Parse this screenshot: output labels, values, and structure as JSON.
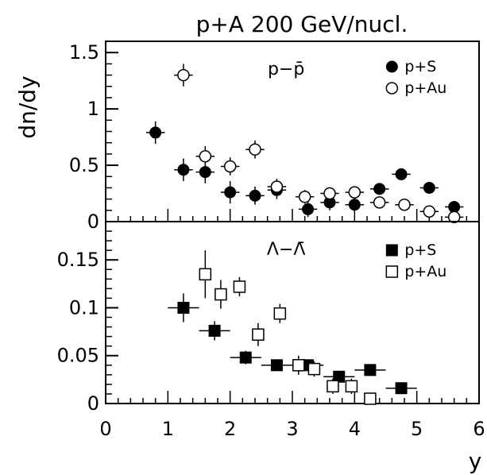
{
  "title": "p+A  200 GeV/nucl.",
  "x_axis": {
    "label": "y",
    "range": [
      0,
      6
    ],
    "ticks": [
      "0",
      "1",
      "2",
      "3",
      "4",
      "5",
      "6"
    ]
  },
  "chart_data": [
    {
      "type": "scatter",
      "panel": "top",
      "annotation": "p−p̄",
      "ylabel": "dn/dy",
      "ylim": [
        0,
        1.6
      ],
      "yticks": [
        "0",
        "0.5",
        "1",
        "1.5"
      ],
      "legend": "top-right",
      "series": [
        {
          "name": "p+S",
          "marker": "filled-circle",
          "points": [
            {
              "x": 0.8,
              "y": 0.79,
              "xerr": 0.15,
              "yerr": 0.1
            },
            {
              "x": 1.25,
              "y": 0.46,
              "xerr": 0.15,
              "yerr": 0.1
            },
            {
              "x": 1.6,
              "y": 0.44,
              "xerr": 0.15,
              "yerr": 0.1
            },
            {
              "x": 2.0,
              "y": 0.26,
              "xerr": 0.15,
              "yerr": 0.1
            },
            {
              "x": 2.4,
              "y": 0.23,
              "xerr": 0.15,
              "yerr": 0.08
            },
            {
              "x": 2.75,
              "y": 0.28,
              "xerr": 0.15,
              "yerr": 0.08
            },
            {
              "x": 3.25,
              "y": 0.11,
              "xerr": 0.15,
              "yerr": 0.07
            },
            {
              "x": 3.6,
              "y": 0.17,
              "xerr": 0.15,
              "yerr": 0.07
            },
            {
              "x": 4.0,
              "y": 0.15,
              "xerr": 0.15,
              "yerr": 0.06
            },
            {
              "x": 4.4,
              "y": 0.29,
              "xerr": 0.15,
              "yerr": 0.05
            },
            {
              "x": 4.75,
              "y": 0.42,
              "xerr": 0.15,
              "yerr": 0.05
            },
            {
              "x": 5.2,
              "y": 0.3,
              "xerr": 0.15,
              "yerr": 0.04
            },
            {
              "x": 5.6,
              "y": 0.13,
              "xerr": 0.15,
              "yerr": 0.05
            }
          ]
        },
        {
          "name": "p+Au",
          "marker": "open-circle",
          "points": [
            {
              "x": 1.25,
              "y": 1.3,
              "xerr": 0.15,
              "yerr": 0.1
            },
            {
              "x": 1.6,
              "y": 0.58,
              "xerr": 0.15,
              "yerr": 0.09
            },
            {
              "x": 2.0,
              "y": 0.49,
              "xerr": 0.15,
              "yerr": 0.08
            },
            {
              "x": 2.4,
              "y": 0.64,
              "xerr": 0.15,
              "yerr": 0.08
            },
            {
              "x": 2.75,
              "y": 0.31,
              "xerr": 0.15,
              "yerr": 0.07
            },
            {
              "x": 3.2,
              "y": 0.22,
              "xerr": 0.15,
              "yerr": 0.06
            },
            {
              "x": 3.6,
              "y": 0.25,
              "xerr": 0.15,
              "yerr": 0.05
            },
            {
              "x": 4.0,
              "y": 0.26,
              "xerr": 0.15,
              "yerr": 0.05
            },
            {
              "x": 4.4,
              "y": 0.17,
              "xerr": 0.15,
              "yerr": 0.04
            },
            {
              "x": 4.8,
              "y": 0.15,
              "xerr": 0.15,
              "yerr": 0.04
            },
            {
              "x": 5.2,
              "y": 0.09,
              "xerr": 0.15,
              "yerr": 0.03
            },
            {
              "x": 5.6,
              "y": 0.04,
              "xerr": 0.15,
              "yerr": 0.03
            }
          ]
        }
      ]
    },
    {
      "type": "scatter",
      "panel": "bottom",
      "annotation": "Λ−Λ̄",
      "ylabel": "",
      "ylim": [
        0,
        0.19
      ],
      "yticks": [
        "0",
        "0.05",
        "0.1",
        "0.15"
      ],
      "legend": "top-right",
      "series": [
        {
          "name": "p+S",
          "marker": "filled-square",
          "points": [
            {
              "x": 1.25,
              "y": 0.1,
              "xerr": 0.25,
              "yerr": 0.015
            },
            {
              "x": 1.75,
              "y": 0.076,
              "xerr": 0.25,
              "yerr": 0.01
            },
            {
              "x": 2.25,
              "y": 0.048,
              "xerr": 0.25,
              "yerr": 0.007
            },
            {
              "x": 2.75,
              "y": 0.04,
              "xerr": 0.25,
              "yerr": 0.006
            },
            {
              "x": 3.25,
              "y": 0.04,
              "xerr": 0.25,
              "yerr": 0.006
            },
            {
              "x": 3.75,
              "y": 0.028,
              "xerr": 0.25,
              "yerr": 0.006
            },
            {
              "x": 4.25,
              "y": 0.035,
              "xerr": 0.25,
              "yerr": 0.005
            },
            {
              "x": 4.75,
              "y": 0.016,
              "xerr": 0.25,
              "yerr": 0.004
            }
          ]
        },
        {
          "name": "p+Au",
          "marker": "open-square",
          "points": [
            {
              "x": 1.6,
              "y": 0.135,
              "xerr": 0.1,
              "yerr": 0.025
            },
            {
              "x": 1.85,
              "y": 0.114,
              "xerr": 0.1,
              "yerr": 0.015
            },
            {
              "x": 2.15,
              "y": 0.122,
              "xerr": 0.1,
              "yerr": 0.01
            },
            {
              "x": 2.45,
              "y": 0.072,
              "xerr": 0.1,
              "yerr": 0.012
            },
            {
              "x": 2.8,
              "y": 0.094,
              "xerr": 0.1,
              "yerr": 0.01
            },
            {
              "x": 3.1,
              "y": 0.04,
              "xerr": 0.1,
              "yerr": 0.01
            },
            {
              "x": 3.35,
              "y": 0.036,
              "xerr": 0.1,
              "yerr": 0.008
            },
            {
              "x": 3.65,
              "y": 0.018,
              "xerr": 0.1,
              "yerr": 0.008
            },
            {
              "x": 3.95,
              "y": 0.018,
              "xerr": 0.1,
              "yerr": 0.008
            },
            {
              "x": 4.25,
              "y": 0.005,
              "xerr": 0.1,
              "yerr": 0.006
            }
          ]
        }
      ]
    }
  ]
}
